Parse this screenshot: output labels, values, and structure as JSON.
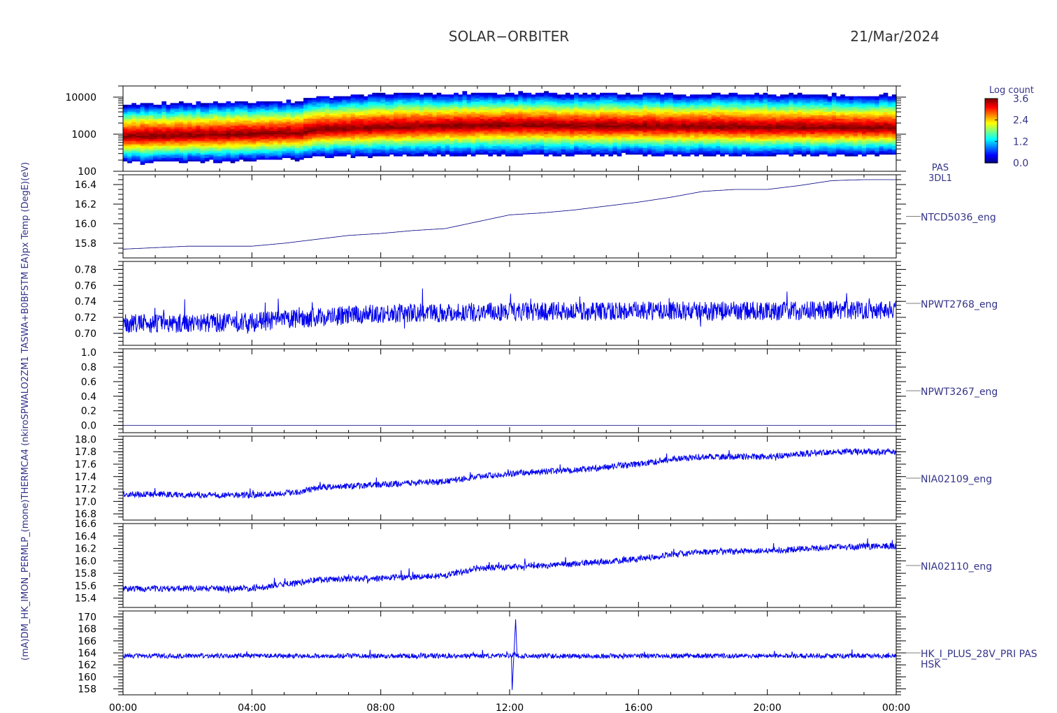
{
  "header": {
    "mission": "SOLAR−ORBITER",
    "date": "21/Mar/2024"
  },
  "left_axis_overlap_text": "(mA)DM_HK_IMON_PERMLP_(mone)THERMCA4 (nkiroSPWALO2ZM1 TASWA+B0BFSTM EA)px Temp (DegE)(eV)",
  "colorbar": {
    "title": "Log count",
    "ticks": [
      "3.6",
      "2.4",
      "1.2",
      "0.0"
    ],
    "range": [
      0.0,
      3.6
    ]
  },
  "x_axis": {
    "ticks": [
      "00:00",
      "04:00",
      "08:00",
      "12:00",
      "16:00",
      "20:00",
      "00:00"
    ]
  },
  "chart_data": [
    {
      "type": "heatmap",
      "name": "PAS 3DL1 energy spectrogram",
      "right_label": [
        "PAS",
        "3DL1"
      ],
      "y_scale": "log",
      "ylim": [
        100,
        20000
      ],
      "yticks": [
        "10000",
        "1000",
        "100"
      ],
      "x_hours": [
        0,
        2,
        4,
        5.5,
        6,
        8,
        10,
        12,
        14,
        16,
        18,
        20,
        22,
        24
      ],
      "peak_energy_eV": [
        850,
        920,
        1000,
        1080,
        1300,
        1500,
        1650,
        1750,
        1650,
        1600,
        1600,
        1500,
        1500,
        1450
      ],
      "upper_edge_eV": [
        6500,
        7000,
        7500,
        8000,
        10000,
        12000,
        13000,
        13000,
        12500,
        12500,
        12000,
        12000,
        11500,
        11500
      ],
      "lower_edge_eV": [
        170,
        180,
        200,
        210,
        250,
        260,
        270,
        270,
        280,
        280,
        270,
        270,
        270,
        280
      ],
      "clim": [
        0.0,
        3.6
      ]
    },
    {
      "type": "line",
      "name": "NTCD5036_eng",
      "ylim": [
        15.65,
        16.5
      ],
      "yticks": [
        "16.4",
        "16.2",
        "16.0",
        "15.8"
      ],
      "x": [
        0,
        2,
        4,
        5,
        6,
        7,
        8,
        9,
        10,
        11,
        12,
        13,
        14,
        15,
        16,
        17,
        18,
        19,
        20,
        21,
        22,
        23,
        24
      ],
      "y": [
        15.74,
        15.77,
        15.77,
        15.8,
        15.84,
        15.88,
        15.9,
        15.93,
        15.95,
        16.02,
        16.09,
        16.11,
        16.14,
        16.18,
        16.22,
        16.27,
        16.33,
        16.35,
        16.35,
        16.39,
        16.44,
        16.45,
        16.45
      ]
    },
    {
      "type": "line",
      "name": "NPWT2768_eng",
      "ylim": [
        0.685,
        0.79
      ],
      "yticks": [
        "0.78",
        "0.76",
        "0.74",
        "0.72",
        "0.70"
      ],
      "x": [
        0,
        4,
        6,
        8,
        12,
        16,
        20,
        24
      ],
      "y": [
        0.712,
        0.714,
        0.72,
        0.725,
        0.727,
        0.728,
        0.728,
        0.73
      ],
      "noise_amplitude": 0.012
    },
    {
      "type": "line",
      "name": "NPWT3267_eng",
      "ylim": [
        -0.1,
        1.05
      ],
      "yticks": [
        "1.0",
        "0.8",
        "0.6",
        "0.4",
        "0.2",
        "0.0"
      ],
      "x": [
        0,
        24
      ],
      "y": [
        0.0,
        0.0
      ]
    },
    {
      "type": "line",
      "name": "NIA02109_eng",
      "ylim": [
        16.7,
        18.05
      ],
      "yticks": [
        "18.0",
        "17.8",
        "17.6",
        "17.4",
        "17.2",
        "17.0",
        "16.8"
      ],
      "x": [
        0,
        4,
        5.5,
        6,
        8,
        10,
        11,
        12,
        13,
        14,
        16,
        17,
        18,
        20,
        22,
        24
      ],
      "y": [
        17.12,
        17.1,
        17.16,
        17.22,
        17.27,
        17.32,
        17.4,
        17.45,
        17.48,
        17.5,
        17.6,
        17.68,
        17.72,
        17.72,
        17.8,
        17.8
      ],
      "noise_amplitude": 0.05
    },
    {
      "type": "line",
      "name": "NIA02110_eng",
      "ylim": [
        15.25,
        16.6
      ],
      "yticks": [
        "16.6",
        "16.4",
        "16.2",
        "16.0",
        "15.8",
        "15.6",
        "15.4"
      ],
      "x": [
        0,
        4,
        5.5,
        6,
        8,
        10,
        11,
        12,
        14,
        16,
        17,
        18,
        20,
        22,
        24
      ],
      "y": [
        15.55,
        15.56,
        15.65,
        15.7,
        15.72,
        15.76,
        15.88,
        15.9,
        15.95,
        16.03,
        16.1,
        16.14,
        16.16,
        16.22,
        16.24
      ],
      "noise_amplitude": 0.05
    },
    {
      "type": "line",
      "name": "HK_I_PLUS_28V_PRI PAS HSK",
      "right_label": [
        "HK_I_PLUS_28V_PRI PAS",
        "HSK"
      ],
      "ylim": [
        157,
        171
      ],
      "yticks": [
        "170",
        "168",
        "166",
        "164",
        "162",
        "160",
        "158"
      ],
      "x": [
        0,
        24
      ],
      "y": [
        163.5,
        163.5
      ],
      "noise_amplitude": 0.4,
      "spike": {
        "x": 12.1,
        "min": 157.8,
        "max": 169.6
      }
    }
  ],
  "colors": {
    "trace": "#0000ee",
    "trace_dark": "#000080",
    "label": "#333388",
    "axis": "#000000",
    "header_text": "#333333"
  }
}
